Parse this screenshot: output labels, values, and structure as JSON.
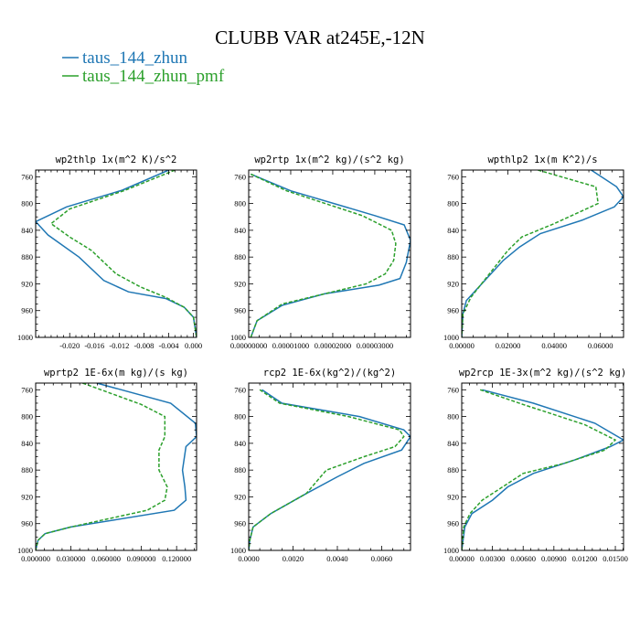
{
  "figure": {
    "title": "CLUBB VAR at245E,-12N",
    "legend": [
      {
        "label": "taus_144_zhun",
        "color": "#1f77b4",
        "dash": "solid"
      },
      {
        "label": "taus_144_zhun_pmf",
        "color": "#2ca02c",
        "dash": "dashed"
      }
    ]
  },
  "chart_data": [
    {
      "type": "line",
      "title": "wp2thlp  1x(m^2 K)/s^2",
      "xlim": [
        -0.0255,
        0.0005
      ],
      "xticks": [
        "-0.020",
        "-0.016",
        "-0.012",
        "-0.008",
        "-0.004",
        "0.000"
      ],
      "xtick_values": [
        -0.02,
        -0.016,
        -0.012,
        -0.008,
        -0.004,
        0.0
      ],
      "ylim": [
        1000,
        750
      ],
      "yticks": [
        760,
        800,
        840,
        880,
        920,
        960,
        1000
      ],
      "series": [
        {
          "name": "taus_144_zhun",
          "color": "#1f77b4",
          "x": [
            -0.004,
            -0.0115,
            -0.0205,
            -0.0255,
            -0.0235,
            -0.0185,
            -0.0145,
            -0.0105,
            -0.0045,
            -0.0015,
            0.0,
            0.0005
          ],
          "y": [
            750,
            780,
            805,
            827,
            847,
            880,
            915,
            932,
            942,
            955,
            970,
            1000
          ]
        },
        {
          "name": "taus_144_zhun_pmf",
          "color": "#2ca02c",
          "x": [
            -0.003,
            -0.011,
            -0.02,
            -0.023,
            -0.02,
            -0.0165,
            -0.0125,
            -0.0085,
            -0.0045,
            -0.0015,
            0.0,
            0.0005
          ],
          "y": [
            750,
            780,
            808,
            830,
            850,
            870,
            905,
            925,
            940,
            955,
            970,
            1000
          ]
        }
      ]
    },
    {
      "type": "line",
      "title": "wp2rtp  1x(m^2 kg)/(s^2 kg)",
      "xlim": [
        0,
        3.85e-05
      ],
      "xticks": [
        "0.00000000",
        "0.00001000",
        "0.00002000",
        "0.00003000"
      ],
      "xtick_values": [
        0,
        1e-05,
        2e-05,
        3e-05
      ],
      "ylim": [
        1000,
        750
      ],
      "yticks": [
        760,
        800,
        840,
        880,
        920,
        960,
        1000
      ],
      "series": [
        {
          "name": "taus_144_zhun",
          "color": "#1f77b4",
          "x": [
            5e-07,
            1e-05,
            3e-05,
            3.7e-05,
            3.85e-05,
            3.75e-05,
            3.6e-05,
            3.1e-05,
            1.8e-05,
            8e-06,
            2e-06,
            5e-07
          ],
          "y": [
            756,
            781,
            818,
            832,
            855,
            888,
            912,
            922,
            935,
            952,
            975,
            1000
          ]
        },
        {
          "name": "taus_144_zhun_pmf",
          "color": "#2ca02c",
          "x": [
            5e-07,
            9e-06,
            2.7e-05,
            3.4e-05,
            3.5e-05,
            3.45e-05,
            3.25e-05,
            2.8e-05,
            1.8e-05,
            8e-06,
            2e-06,
            5e-07
          ],
          "y": [
            756,
            781,
            818,
            840,
            860,
            885,
            905,
            920,
            935,
            950,
            975,
            1000
          ]
        }
      ]
    },
    {
      "type": "line",
      "title": "wpthlp2  1x(m K^2)/s",
      "xlim": [
        0,
        0.07
      ],
      "xticks": [
        "0.00000",
        "0.02000",
        "0.04000",
        "0.06000"
      ],
      "xtick_values": [
        0,
        0.02,
        0.04,
        0.06
      ],
      "ylim": [
        1000,
        750
      ],
      "yticks": [
        760,
        800,
        840,
        880,
        920,
        960,
        1000
      ],
      "series": [
        {
          "name": "taus_144_zhun",
          "color": "#1f77b4",
          "x": [
            0.056,
            0.067,
            0.07,
            0.066,
            0.052,
            0.034,
            0.025,
            0.018,
            0.01,
            0.002,
            0.0005,
            0.0
          ],
          "y": [
            750,
            775,
            790,
            805,
            825,
            845,
            865,
            885,
            915,
            945,
            965,
            1000
          ]
        },
        {
          "name": "taus_144_zhun_pmf",
          "color": "#2ca02c",
          "x": [
            0.033,
            0.058,
            0.059,
            0.04,
            0.026,
            0.02,
            0.012,
            0.004,
            0.0005,
            0.0
          ],
          "y": [
            750,
            775,
            800,
            830,
            850,
            870,
            905,
            940,
            965,
            1000
          ]
        }
      ]
    },
    {
      "type": "line",
      "title": "wprtp2  1E-6x(m kg)/(s kg)",
      "xlim": [
        0,
        0.137
      ],
      "xticks": [
        "0.000000",
        "0.030000",
        "0.060000",
        "0.090000",
        "0.120000"
      ],
      "xtick_values": [
        0,
        0.03,
        0.06,
        0.09,
        0.12
      ],
      "ylim": [
        1000,
        750
      ],
      "yticks": [
        760,
        800,
        840,
        880,
        920,
        960,
        1000
      ],
      "series": [
        {
          "name": "taus_144_zhun",
          "color": "#1f77b4",
          "x": [
            0.052,
            0.115,
            0.136,
            0.137,
            0.128,
            0.125,
            0.127,
            0.128,
            0.118,
            0.03,
            0.008,
            0.002,
            0.0
          ],
          "y": [
            750,
            780,
            810,
            830,
            845,
            880,
            905,
            925,
            940,
            965,
            975,
            985,
            1000
          ]
        },
        {
          "name": "taus_144_zhun_pmf",
          "color": "#2ca02c",
          "x": [
            0.04,
            0.09,
            0.11,
            0.11,
            0.105,
            0.105,
            0.112,
            0.11,
            0.095,
            0.03,
            0.008,
            0.002,
            0.0
          ],
          "y": [
            750,
            782,
            800,
            830,
            850,
            880,
            905,
            925,
            940,
            965,
            975,
            985,
            1000
          ]
        }
      ]
    },
    {
      "type": "line",
      "title": "rcp2  1E-6x(kg^2)/(kg^2)",
      "xlim": [
        0,
        0.0073
      ],
      "xticks": [
        "0.0000",
        "0.0020",
        "0.0040",
        "0.0060"
      ],
      "xtick_values": [
        0,
        0.002,
        0.004,
        0.006
      ],
      "ylim": [
        1000,
        750
      ],
      "yticks": [
        760,
        800,
        840,
        880,
        920,
        960,
        1000
      ],
      "series": [
        {
          "name": "taus_144_zhun",
          "color": "#1f77b4",
          "x": [
            0.0006,
            0.0015,
            0.005,
            0.007,
            0.0073,
            0.0069,
            0.0052,
            0.004,
            0.0026,
            0.001,
            0.0002,
            5e-05,
            0.0
          ],
          "y": [
            760,
            780,
            800,
            820,
            830,
            850,
            870,
            890,
            915,
            945,
            965,
            985,
            1000
          ]
        },
        {
          "name": "taus_144_zhun_pmf",
          "color": "#2ca02c",
          "x": [
            0.0005,
            0.0014,
            0.0045,
            0.0068,
            0.007,
            0.0066,
            0.0052,
            0.0035,
            0.0026,
            0.001,
            0.0002,
            5e-05,
            0.0
          ],
          "y": [
            760,
            780,
            800,
            820,
            830,
            845,
            860,
            880,
            915,
            945,
            965,
            985,
            1000
          ]
        }
      ]
    },
    {
      "type": "line",
      "title": "wp2rcp  1E-3x(m^2 kg)/(s^2 kg)",
      "xlim": [
        0,
        0.0158
      ],
      "xticks": [
        "0.00000",
        "0.00300",
        "0.00600",
        "0.00900",
        "0.01200",
        "0.01500"
      ],
      "xtick_values": [
        0,
        0.003,
        0.006,
        0.009,
        0.012,
        0.015
      ],
      "ylim": [
        1000,
        750
      ],
      "yticks": [
        760,
        800,
        840,
        880,
        920,
        960,
        1000
      ],
      "series": [
        {
          "name": "taus_144_zhun",
          "color": "#1f77b4",
          "x": [
            0.002,
            0.007,
            0.013,
            0.0158,
            0.0145,
            0.011,
            0.007,
            0.0045,
            0.003,
            0.001,
            0.0003,
            0.0
          ],
          "y": [
            760,
            780,
            810,
            835,
            845,
            865,
            885,
            905,
            925,
            945,
            965,
            1000
          ]
        },
        {
          "name": "taus_144_zhun_pmf",
          "color": "#2ca02c",
          "x": [
            0.0018,
            0.006,
            0.012,
            0.015,
            0.014,
            0.01,
            0.006,
            0.004,
            0.002,
            0.0008,
            0.0002,
            0.0
          ],
          "y": [
            760,
            782,
            812,
            835,
            850,
            870,
            885,
            905,
            925,
            945,
            965,
            1000
          ]
        }
      ]
    }
  ]
}
